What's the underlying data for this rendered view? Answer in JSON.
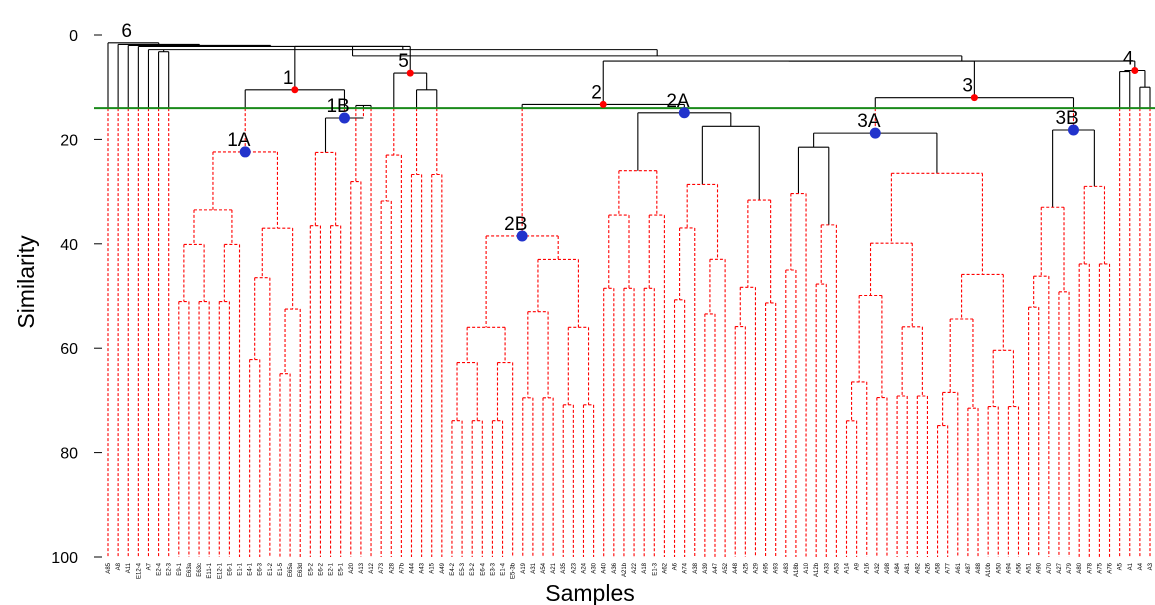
{
  "chart_data": {
    "type": "dendrogram",
    "xlabel": "Samples",
    "ylabel": "Similarity",
    "ylim": [
      0,
      100
    ],
    "yticks": [
      0,
      20,
      40,
      60,
      80,
      100
    ],
    "cut_line": {
      "similarity": 14,
      "color": "#1a8a1a"
    },
    "colors": {
      "above_cut": "#000000",
      "below_cut": "#ff0000",
      "major_node": "#ff0000",
      "sub_node": "#2233cc"
    },
    "leaves": [
      "A85",
      "A8",
      "A11",
      "E12-4",
      "A7",
      "E2-4",
      "E2-3",
      "E9-1",
      "E63a",
      "E63c",
      "E11-1",
      "E12-1",
      "E6-1",
      "E1-1",
      "E4-1",
      "E6-3",
      "E1-2",
      "E1-5",
      "E65a",
      "E63d",
      "E5-2",
      "E6-2",
      "E2-1",
      "E5-1",
      "A20",
      "A13",
      "A12",
      "A73",
      "A28",
      "A7b",
      "A44",
      "A43",
      "A15",
      "A49",
      "E4-2",
      "E5-3",
      "E3-2",
      "E6-4",
      "E3-3",
      "E1-4",
      "E5-3b",
      "A19",
      "A31",
      "A54",
      "A21",
      "A35",
      "A23",
      "A24",
      "A30",
      "A40",
      "A36",
      "A21b",
      "A22",
      "A18",
      "E1-3",
      "A62",
      "A6",
      "A74",
      "A38",
      "A39",
      "A47",
      "A52",
      "A48",
      "A25",
      "A29",
      "A95",
      "A93",
      "A83",
      "A18b",
      "A10",
      "A12b",
      "A33",
      "A53",
      "A14",
      "A9",
      "A16",
      "A32",
      "A98",
      "A84",
      "A81",
      "A82",
      "A26",
      "A58",
      "A77",
      "A61",
      "A87",
      "A88",
      "A10b",
      "A50",
      "A94",
      "A56",
      "A51",
      "A90",
      "A70",
      "A27",
      "A79",
      "A80",
      "A78",
      "A75",
      "A76",
      "A5",
      "A1",
      "A4",
      "A3"
    ],
    "nodes": [
      {
        "label": "6",
        "similarity": 1.5,
        "kind": "major"
      },
      {
        "label": "1",
        "similarity": 10.5,
        "kind": "major"
      },
      {
        "label": "5",
        "similarity": 7.3,
        "kind": "major"
      },
      {
        "label": "2",
        "similarity": 13.3,
        "kind": "major"
      },
      {
        "label": "3",
        "similarity": 12.0,
        "kind": "major"
      },
      {
        "label": "4",
        "similarity": 6.8,
        "kind": "major"
      },
      {
        "label": "1A",
        "similarity": 22.4,
        "kind": "sub"
      },
      {
        "label": "1B",
        "similarity": 15.9,
        "kind": "sub"
      },
      {
        "label": "2A",
        "similarity": 14.9,
        "kind": "sub"
      },
      {
        "label": "2B",
        "similarity": 38.5,
        "kind": "sub"
      },
      {
        "label": "3A",
        "similarity": 18.8,
        "kind": "sub"
      },
      {
        "label": "3B",
        "similarity": 18.2,
        "kind": "sub"
      }
    ]
  }
}
